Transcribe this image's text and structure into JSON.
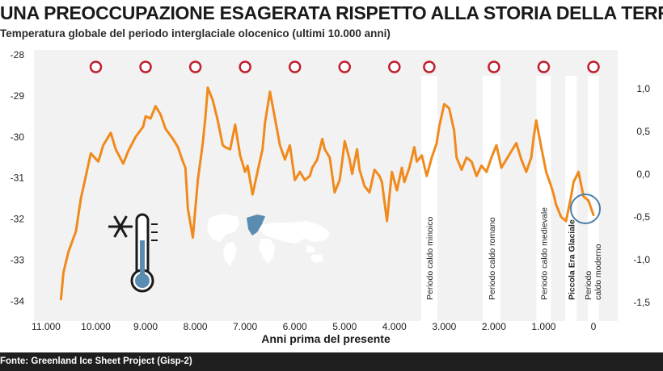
{
  "header": {
    "title": "UNA PREOCCUPAZIONE ESAGERATA RISPETTO ALLA STORIA DELLA TERRA",
    "subtitle": "Temperatura globale del periodo interglaciale olocenico (ultimi 10.000 anni)"
  },
  "footer": {
    "source": "Fonte: Greenland Ice Sheet Project (Gisp-2)"
  },
  "colors": {
    "line": "#f08a1c",
    "marker": "#c0202e",
    "highlight": "#4a7fa6",
    "band": "#ffffff",
    "background": "#f2f2f2"
  },
  "icons": [
    "snowflake-icon",
    "thermometer-icon",
    "world-map-icon"
  ],
  "chart_data": {
    "type": "line",
    "xlabel": "Anni prima del presente",
    "x_reversed": true,
    "xlim": [
      11400,
      -300
    ],
    "x_ticks": [
      11000,
      10000,
      9000,
      8000,
      7000,
      6000,
      5000,
      4000,
      3000,
      2000,
      1000,
      0
    ],
    "x_tick_labels": [
      "11.000",
      "10.000",
      "9.000",
      "8.000",
      "7.000",
      "6.000",
      "5.000",
      "4.000",
      "3.000",
      "2.000",
      "1.000",
      "0"
    ],
    "ylim_left": [
      -34.1,
      -27.9
    ],
    "y_ticks_left": [
      -28,
      -29,
      -30,
      -31,
      -32,
      -33,
      -34
    ],
    "y_tick_labels_left": [
      "-28",
      "-29",
      "-30",
      "-31",
      "-32",
      "-33",
      "-34"
    ],
    "ylim_right": [
      -1.5,
      1.2
    ],
    "y_ticks_right": [
      1.0,
      0.5,
      0.0,
      -0.5,
      -1.0,
      -1.5
    ],
    "y_tick_labels_right": [
      "1,0",
      "0,5",
      "0,0",
      "-0,5",
      "-1,0",
      "-1,5"
    ],
    "markers_x": [
      10000,
      9000,
      8000,
      7000,
      6000,
      5000,
      4000,
      3300,
      2000,
      1000,
      0
    ],
    "periods": [
      {
        "label": "Periodo caldo minoico",
        "x": 3300,
        "bold": false
      },
      {
        "label": "Periodo caldo romano",
        "x": 2050,
        "bold": false
      },
      {
        "label": "Periodo caldo medievale",
        "x": 1000,
        "bold": false
      },
      {
        "label": "Piccola Era Glaciale",
        "x": 450,
        "bold": true
      },
      {
        "label": "Periodo caldo moderno",
        "x": 0,
        "bold": false
      }
    ],
    "series": [
      {
        "x": [
          10700,
          10650,
          10550,
          10400,
          10300,
          10200,
          10100,
          9950,
          9850,
          9700,
          9600,
          9450,
          9350,
          9200,
          9050,
          9000,
          8900,
          8800,
          8700,
          8600,
          8450,
          8350,
          8250,
          8200,
          8150,
          8050,
          7950,
          7850,
          7800,
          7750,
          7650,
          7550,
          7450,
          7400,
          7300,
          7200,
          7100,
          7000,
          6950,
          6850,
          6750,
          6650,
          6600,
          6500,
          6400,
          6300,
          6200,
          6100,
          6000,
          5900,
          5800,
          5700,
          5650,
          5550,
          5450,
          5400,
          5300,
          5200,
          5100,
          5050,
          5000,
          4900,
          4850,
          4750,
          4700,
          4600,
          4500,
          4400,
          4300,
          4250,
          4150,
          4050,
          3950,
          3850,
          3800,
          3700,
          3600,
          3550,
          3450,
          3350,
          3250,
          3150,
          3100,
          3000,
          2900,
          2800,
          2750,
          2650,
          2550,
          2450,
          2350,
          2250,
          2150,
          2050,
          1950,
          1850,
          1750,
          1650,
          1550,
          1450,
          1350,
          1250,
          1200,
          1150,
          1050,
          950,
          850,
          800,
          750,
          650,
          550,
          450,
          400,
          300,
          200,
          100,
          0
        ],
        "y": [
          -33.95,
          -33.3,
          -32.8,
          -32.3,
          -31.5,
          -30.95,
          -30.4,
          -30.6,
          -30.2,
          -29.9,
          -30.3,
          -30.65,
          -30.35,
          -30.0,
          -29.75,
          -29.5,
          -29.55,
          -29.25,
          -29.45,
          -29.8,
          -30.05,
          -30.25,
          -30.6,
          -30.75,
          -31.75,
          -32.45,
          -31.05,
          -30.15,
          -29.55,
          -28.8,
          -29.1,
          -29.6,
          -30.2,
          -30.25,
          -30.3,
          -29.7,
          -30.45,
          -30.85,
          -30.7,
          -31.4,
          -30.85,
          -30.3,
          -29.65,
          -28.9,
          -29.55,
          -30.2,
          -30.55,
          -30.2,
          -31.05,
          -30.85,
          -31.05,
          -30.95,
          -30.75,
          -30.55,
          -30.05,
          -30.3,
          -30.5,
          -31.35,
          -31.05,
          -30.6,
          -30.1,
          -30.55,
          -30.9,
          -30.3,
          -30.8,
          -31.2,
          -31.35,
          -30.8,
          -30.95,
          -31.1,
          -32.05,
          -30.85,
          -31.3,
          -30.75,
          -31.1,
          -30.75,
          -30.25,
          -30.6,
          -30.45,
          -30.95,
          -30.5,
          -30.15,
          -29.75,
          -29.2,
          -29.3,
          -29.85,
          -30.5,
          -30.8,
          -30.5,
          -30.6,
          -30.95,
          -30.7,
          -30.85,
          -30.5,
          -30.2,
          -30.75,
          -30.55,
          -30.35,
          -30.15,
          -30.55,
          -30.85,
          -30.5,
          -30.0,
          -29.6,
          -30.25,
          -30.85,
          -31.2,
          -31.4,
          -31.65,
          -31.95,
          -32.05,
          -31.45,
          -31.1,
          -30.85,
          -31.45,
          -31.55,
          -31.9
        ]
      }
    ]
  }
}
